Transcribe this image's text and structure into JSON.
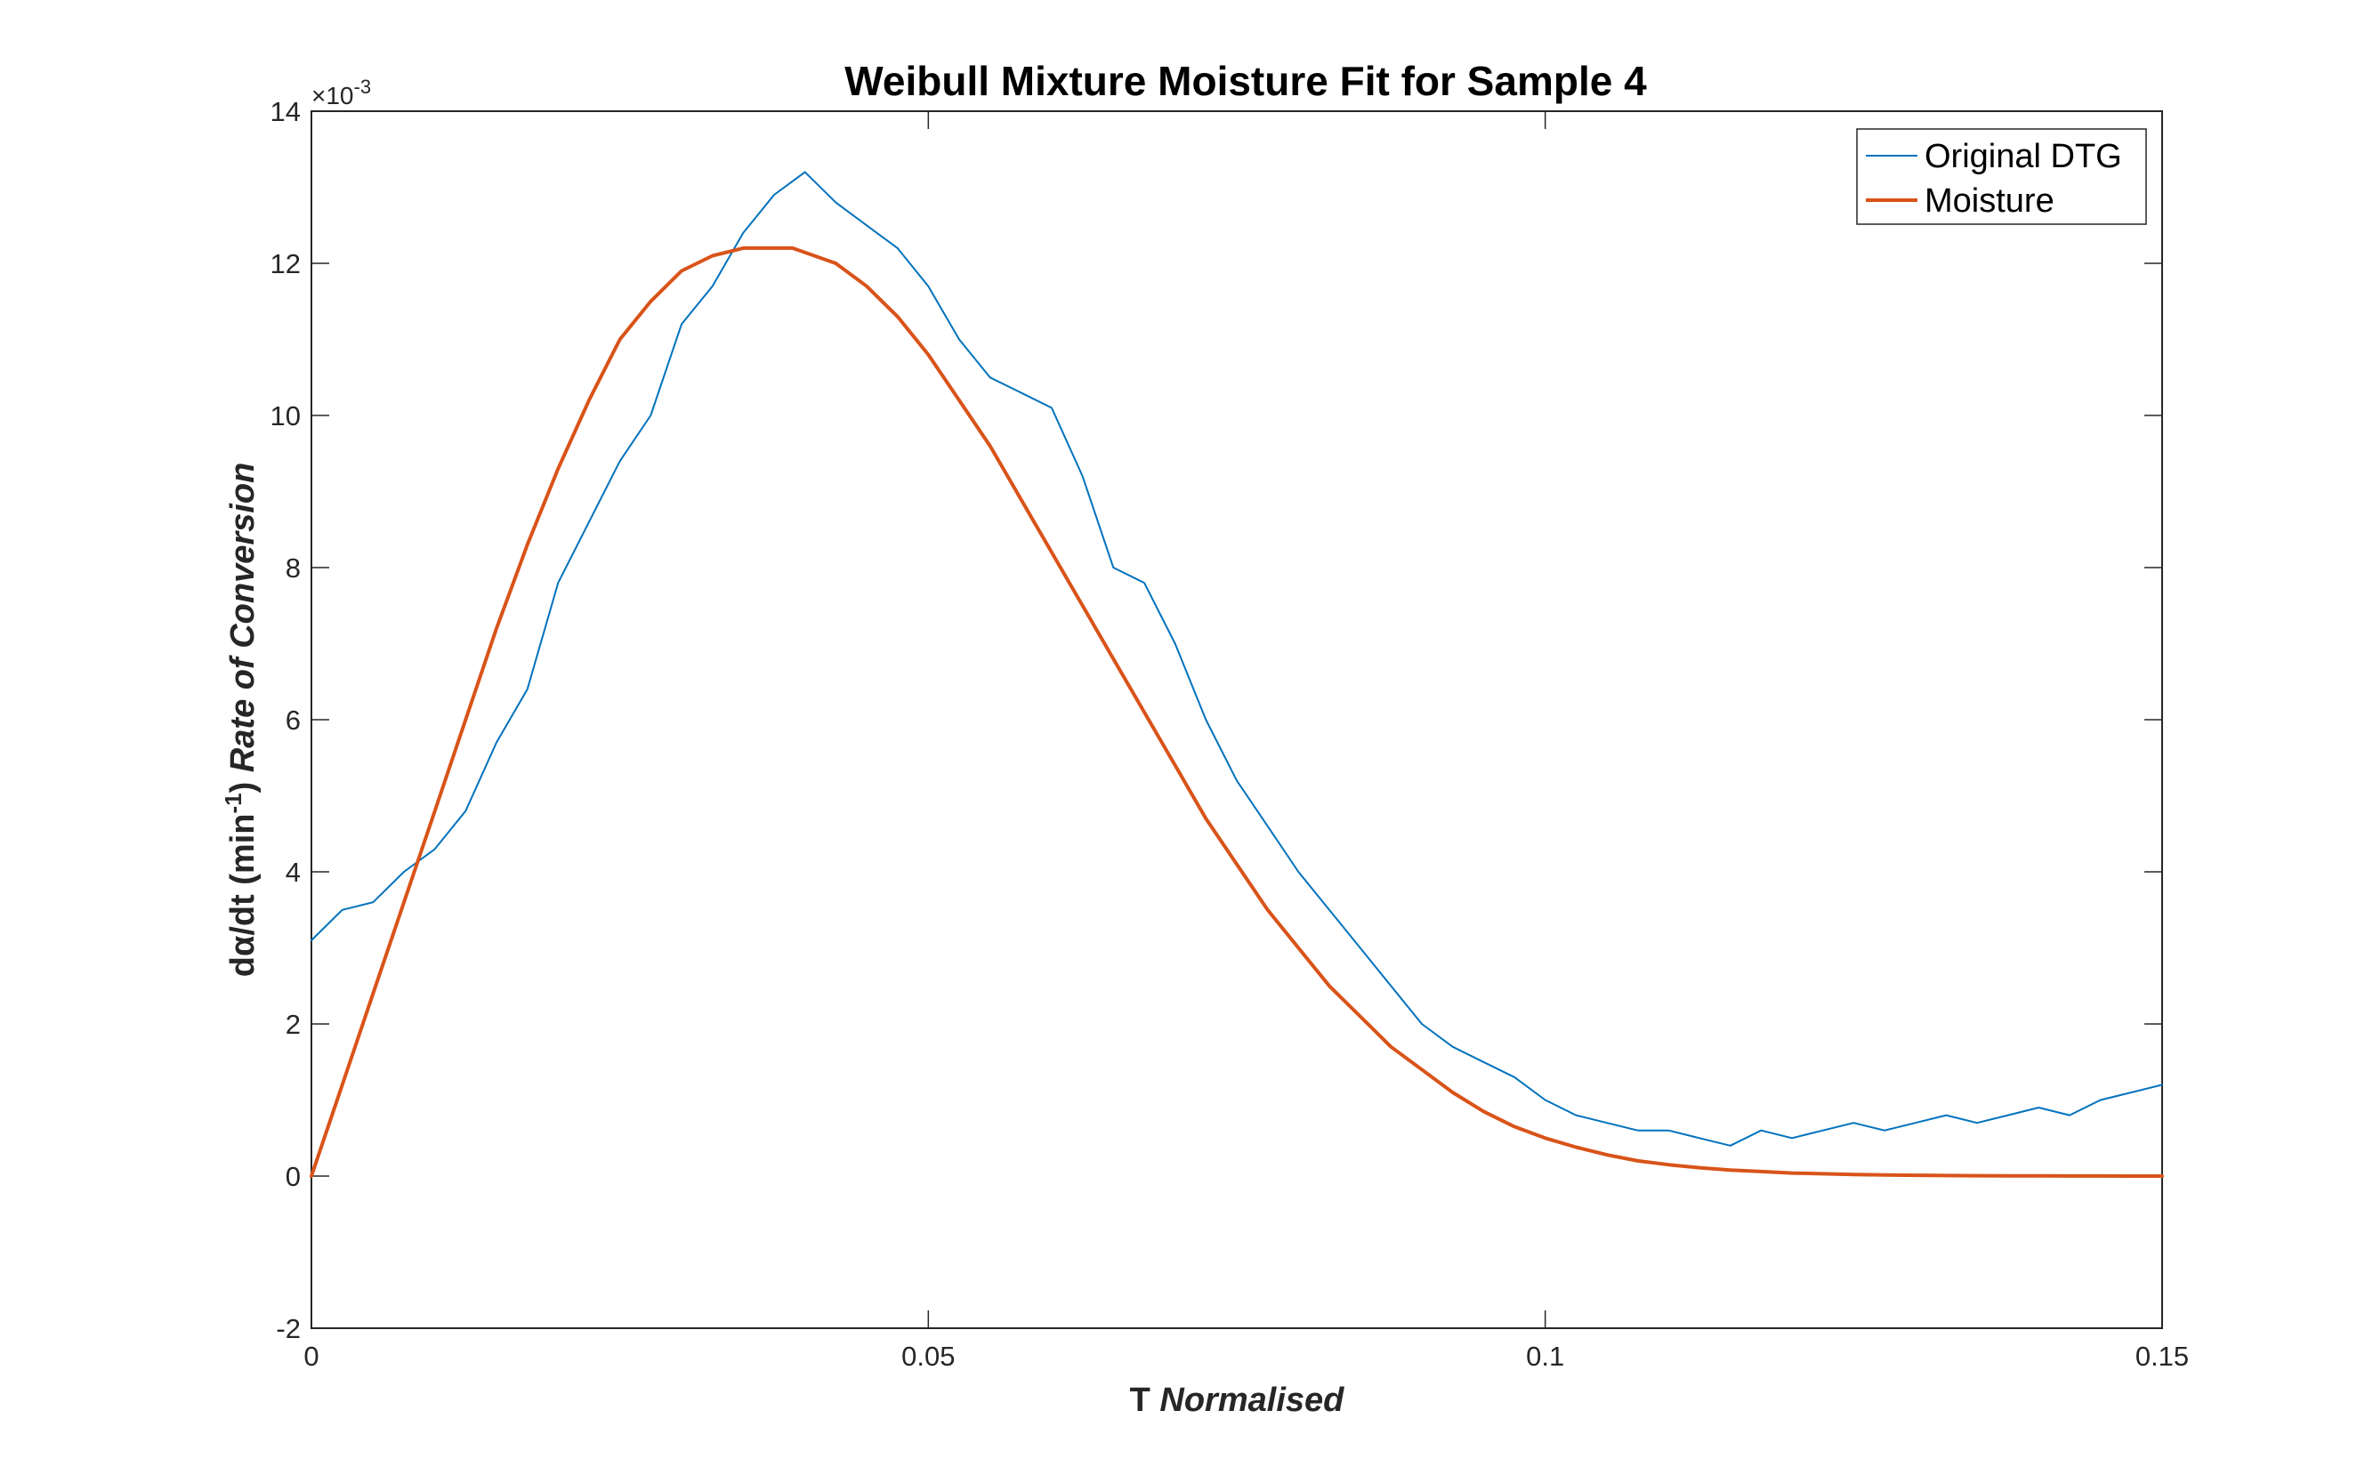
{
  "chart_data": {
    "type": "line",
    "title": "Weibull Mixture Moisture Fit for Sample 4",
    "xlabel": {
      "main": "T",
      "italic": "Normalised"
    },
    "ylabel": {
      "main": "dα/dt (min",
      "sup": "-1",
      "close": ")",
      "italic": "Rate of Conversion"
    },
    "y_multiplier": {
      "base": "×10",
      "exp": "-3"
    },
    "xlim": [
      0,
      0.15
    ],
    "ylim": [
      -2,
      14
    ],
    "x_ticks": [
      {
        "value": 0,
        "label": "0"
      },
      {
        "value": 0.05,
        "label": "0.05"
      },
      {
        "value": 0.1,
        "label": "0.1"
      },
      {
        "value": 0.15,
        "label": "0.15"
      }
    ],
    "y_ticks": [
      {
        "value": -2,
        "label": "-2"
      },
      {
        "value": 0,
        "label": "0"
      },
      {
        "value": 2,
        "label": "2"
      },
      {
        "value": 4,
        "label": "4"
      },
      {
        "value": 6,
        "label": "6"
      },
      {
        "value": 8,
        "label": "8"
      },
      {
        "value": 10,
        "label": "10"
      },
      {
        "value": 12,
        "label": "12"
      },
      {
        "value": 14,
        "label": "14"
      }
    ],
    "grid": false,
    "legend_position": "top-right",
    "series": [
      {
        "name": "Original DTG",
        "color": "#0072BD",
        "x": [
          0,
          0.0025,
          0.005,
          0.0075,
          0.01,
          0.0125,
          0.015,
          0.0175,
          0.02,
          0.0225,
          0.025,
          0.0275,
          0.03,
          0.0325,
          0.035,
          0.0375,
          0.04,
          0.0425,
          0.045,
          0.0475,
          0.05,
          0.0525,
          0.055,
          0.0575,
          0.06,
          0.0625,
          0.065,
          0.0675,
          0.07,
          0.0725,
          0.075,
          0.0775,
          0.08,
          0.0825,
          0.085,
          0.0875,
          0.09,
          0.0925,
          0.095,
          0.0975,
          0.1,
          0.1025,
          0.105,
          0.1075,
          0.11,
          0.1125,
          0.115,
          0.1175,
          0.12,
          0.1225,
          0.125,
          0.1275,
          0.13,
          0.1325,
          0.135,
          0.1375,
          0.14,
          0.1425,
          0.145,
          0.1475,
          0.15
        ],
        "y": [
          3.1,
          3.5,
          3.6,
          4.0,
          4.3,
          4.8,
          5.7,
          6.4,
          7.8,
          8.6,
          9.4,
          10.0,
          11.2,
          11.7,
          12.4,
          12.9,
          13.2,
          12.8,
          12.5,
          12.2,
          11.7,
          11.0,
          10.5,
          10.3,
          10.1,
          9.2,
          8.0,
          7.8,
          7.0,
          6.0,
          5.2,
          4.6,
          4.0,
          3.5,
          3.0,
          2.5,
          2.0,
          1.7,
          1.5,
          1.3,
          1.0,
          0.8,
          0.7,
          0.6,
          0.6,
          0.5,
          0.4,
          0.6,
          0.5,
          0.6,
          0.7,
          0.6,
          0.7,
          0.8,
          0.7,
          0.8,
          0.9,
          0.8,
          1.0,
          1.1,
          1.2
        ]
      },
      {
        "name": "Moisture",
        "color": "#D95319",
        "x": [
          0,
          0.0025,
          0.005,
          0.0075,
          0.01,
          0.0125,
          0.015,
          0.0175,
          0.02,
          0.0225,
          0.025,
          0.0275,
          0.03,
          0.0325,
          0.035,
          0.0375,
          0.039,
          0.0425,
          0.045,
          0.0475,
          0.05,
          0.0525,
          0.055,
          0.0575,
          0.06,
          0.0625,
          0.065,
          0.0675,
          0.07,
          0.0725,
          0.075,
          0.0775,
          0.08,
          0.0825,
          0.085,
          0.0875,
          0.09,
          0.0925,
          0.095,
          0.0975,
          0.1,
          0.1025,
          0.105,
          0.1075,
          0.11,
          0.1125,
          0.115,
          0.1175,
          0.12,
          0.1225,
          0.125,
          0.1275,
          0.13,
          0.1325,
          0.135,
          0.1375,
          0.14,
          0.1425,
          0.145,
          0.1475,
          0.15
        ],
        "y": [
          0,
          1.2,
          2.4,
          3.6,
          4.8,
          6.0,
          7.2,
          8.3,
          9.3,
          10.2,
          11.0,
          11.5,
          11.9,
          12.1,
          12.2,
          12.2,
          12.2,
          12.0,
          11.7,
          11.3,
          10.8,
          10.2,
          9.6,
          8.9,
          8.2,
          7.5,
          6.8,
          6.1,
          5.4,
          4.7,
          4.1,
          3.5,
          3.0,
          2.5,
          2.1,
          1.7,
          1.4,
          1.1,
          0.85,
          0.65,
          0.5,
          0.38,
          0.28,
          0.2,
          0.15,
          0.11,
          0.08,
          0.06,
          0.04,
          0.03,
          0.02,
          0.015,
          0.01,
          0.007,
          0.005,
          0.003,
          0.002,
          0.001,
          0.001,
          0,
          0
        ]
      }
    ]
  }
}
